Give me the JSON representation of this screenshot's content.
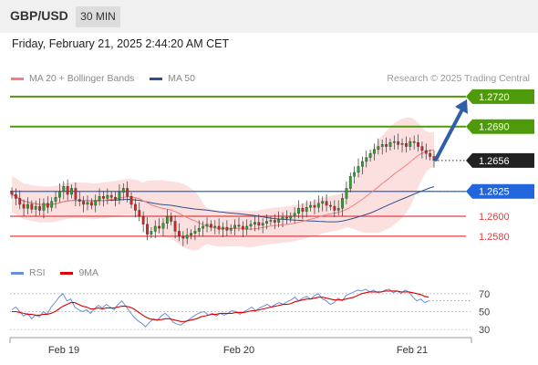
{
  "header": {
    "symbol": "GBP/USD",
    "timeframe": "30 MIN"
  },
  "timestamp": "Friday, February 21, 2025 2:44:20 AM CET",
  "legend": {
    "ma20": {
      "label": "MA 20 + Bollinger Bands",
      "color": "#f08080"
    },
    "ma50": {
      "label": "MA 50",
      "color": "#2e4f8c"
    },
    "rsi": {
      "label": "RSI",
      "color": "#6a8ed8"
    },
    "ma9": {
      "label": "9MA",
      "color": "#dd0000"
    }
  },
  "research_text": "Research © 2025 Trading Central",
  "levels": [
    {
      "value": 1.272,
      "label": "1.2720",
      "kind": "resistance",
      "color": "#4f9a0a"
    },
    {
      "value": 1.269,
      "label": "1.2690",
      "kind": "resistance",
      "color": "#4f9a0a"
    },
    {
      "value": 1.2656,
      "label": "1.2656",
      "kind": "last-price",
      "color": "#222222"
    },
    {
      "value": 1.2625,
      "label": "1.2625",
      "kind": "pivot",
      "color": "#2266dd"
    },
    {
      "value": 1.26,
      "label": "1.2600",
      "kind": "support",
      "color": "#e04040"
    },
    {
      "value": 1.258,
      "label": "1.2580",
      "kind": "support",
      "color": "#e04040"
    }
  ],
  "rsi_levels": [
    {
      "value": 70,
      "label": "70"
    },
    {
      "value": 50,
      "label": "50"
    },
    {
      "value": 30,
      "label": "30"
    }
  ],
  "x_axis_labels": [
    "Feb 19",
    "Feb 20",
    "Feb 21"
  ],
  "colors": {
    "up_candle": "#22aa22",
    "down_candle": "#dd2222",
    "band_fill": "#fbdada",
    "arrow": "#2e5fa8"
  },
  "chart_data": {
    "type": "candlestick",
    "y_range": [
      1.2568,
      1.273
    ],
    "rsi_range": [
      25,
      80
    ],
    "price_close": [
      1.2622,
      1.2618,
      1.2612,
      1.2608,
      1.2612,
      1.2607,
      1.261,
      1.2606,
      1.2613,
      1.2609,
      1.2615,
      1.2619,
      1.2625,
      1.263,
      1.2622,
      1.2628,
      1.2617,
      1.2615,
      1.2612,
      1.2614,
      1.2611,
      1.2616,
      1.262,
      1.2618,
      1.2621,
      1.2619,
      1.2617,
      1.2624,
      1.2628,
      1.262,
      1.2612,
      1.2606,
      1.26,
      1.2592,
      1.2582,
      1.2585,
      1.259,
      1.2588,
      1.2593,
      1.26,
      1.2595,
      1.2585,
      1.258,
      1.2578,
      1.2581,
      1.2583,
      1.2585,
      1.2588,
      1.259,
      1.2592,
      1.2589,
      1.259,
      1.2587,
      1.2589,
      1.2586,
      1.2588,
      1.2591,
      1.259,
      1.2587,
      1.259,
      1.2592,
      1.2594,
      1.2591,
      1.2593,
      1.2595,
      1.2596,
      1.2594,
      1.2597,
      1.2599,
      1.2598,
      1.26,
      1.2603,
      1.2608,
      1.2605,
      1.2609,
      1.2611,
      1.2609,
      1.2613,
      1.2615,
      1.2611,
      1.261,
      1.2606,
      1.2608,
      1.2618,
      1.2628,
      1.264,
      1.2644,
      1.265,
      1.2655,
      1.2659,
      1.2663,
      1.2667,
      1.267,
      1.2672,
      1.267,
      1.2674,
      1.2675,
      1.2672,
      1.2673,
      1.267,
      1.2675,
      1.2674,
      1.267,
      1.2666,
      1.2663,
      1.266,
      1.2656
    ],
    "rsi": [
      52,
      55,
      50,
      45,
      48,
      42,
      46,
      44,
      50,
      47,
      55,
      60,
      66,
      70,
      62,
      64,
      55,
      52,
      50,
      52,
      48,
      53,
      57,
      54,
      58,
      55,
      52,
      58,
      62,
      56,
      50,
      44,
      40,
      37,
      33,
      38,
      42,
      40,
      45,
      48,
      44,
      38,
      36,
      35,
      38,
      41,
      44,
      47,
      49,
      50,
      46,
      48,
      45,
      48,
      46,
      48,
      51,
      50,
      47,
      50,
      52,
      55,
      51,
      54,
      56,
      58,
      55,
      58,
      60,
      58,
      61,
      63,
      66,
      62,
      65,
      67,
      64,
      68,
      70,
      64,
      62,
      58,
      60,
      65,
      62,
      68,
      70,
      72,
      74,
      73,
      75,
      72,
      74,
      71,
      72,
      74,
      75,
      71,
      73,
      70,
      74,
      72,
      66,
      62,
      64,
      60,
      62
    ],
    "rsi_ma9": [
      50,
      50,
      49,
      48,
      47,
      47,
      46,
      46,
      47,
      47,
      48,
      50,
      53,
      56,
      58,
      60,
      60,
      58,
      56,
      55,
      53,
      53,
      54,
      53,
      54,
      54,
      54,
      55,
      56,
      56,
      55,
      53,
      50,
      47,
      44,
      42,
      41,
      41,
      41,
      42,
      42,
      41,
      40,
      39,
      39,
      40,
      41,
      42,
      44,
      45,
      46,
      47,
      47,
      48,
      48,
      48,
      48,
      49,
      49,
      49,
      50,
      51,
      51,
      52,
      53,
      54,
      55,
      56,
      57,
      58,
      58,
      59,
      61,
      62,
      63,
      64,
      64,
      65,
      66,
      66,
      65,
      64,
      63,
      63,
      63,
      64,
      65,
      66,
      68,
      70,
      71,
      72,
      72,
      72,
      72,
      73,
      73,
      73,
      73,
      72,
      72,
      72,
      71,
      70,
      69,
      67,
      66
    ]
  }
}
